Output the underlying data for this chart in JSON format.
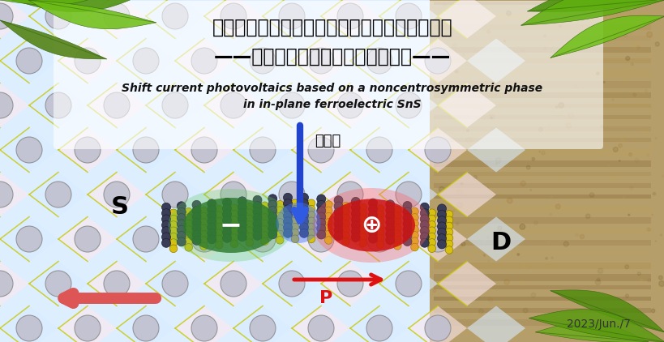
{
  "title_japanese_line1": "原子層強誘電材料のバルク光起電力発電を実証",
  "title_japanese_line2": "——ナノ発電実現へ新たな道を開拓——",
  "title_english_line1": "Shift current photovoltaics based on a noncentrosymmetric phase",
  "title_english_line2": "in in-plane ferroelectric SnS",
  "label_visible_light": "可視光",
  "label_S": "S",
  "label_D": "D",
  "label_P": "P",
  "label_date": "2023/Jun./7",
  "bg_left_color": "#ddeeff",
  "bg_right_color": "#c8aa70",
  "green_blob_color": "#2d7a2d",
  "red_blob_color": "#cc1111",
  "blue_arrow_color": "#2244cc",
  "red_arrow_color": "#dd1111",
  "left_red_arrow_color": "#cc4444",
  "grid_line_color": "#c8c800",
  "atom_large_color": "#c0c0d0",
  "atom_small_yellow": "#d8c820",
  "atom_small_dark": "#404868"
}
